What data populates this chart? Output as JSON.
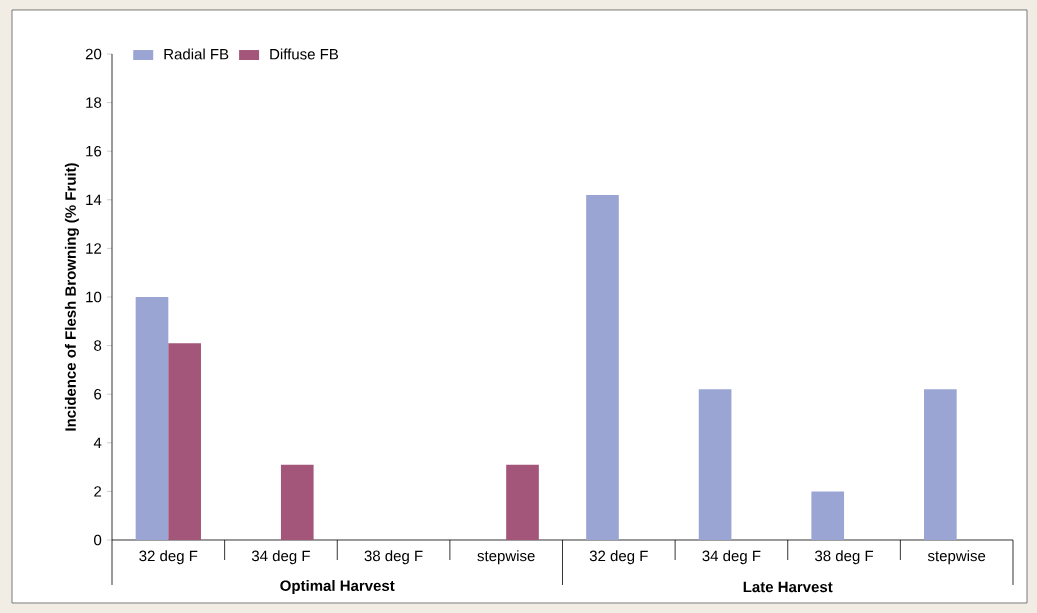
{
  "chart_data": {
    "type": "bar",
    "ylabel": "Incidence of Flesh Browning (% Fruit)",
    "categories": [
      "32 deg F",
      "34 deg F",
      "38 deg F",
      "stepwise",
      "32 deg F",
      "34 deg F",
      "38 deg F",
      "stepwise"
    ],
    "series": [
      {
        "name": "Radial FB",
        "color": "#9aa5d4",
        "values": [
          10,
          0,
          0,
          0,
          14.2,
          6.2,
          2,
          6.2
        ]
      },
      {
        "name": "Diffuse FB",
        "color": "#a4557a",
        "values": [
          8.1,
          3.1,
          0,
          3.1,
          0,
          0,
          0,
          0
        ]
      }
    ],
    "annotations": [
      "Optimal Harvest",
      "Late Harvest"
    ],
    "ylim": [
      0,
      20
    ],
    "yticks": [
      0,
      2,
      4,
      6,
      8,
      10,
      12,
      14,
      16,
      18,
      20
    ],
    "legend": "top left"
  }
}
